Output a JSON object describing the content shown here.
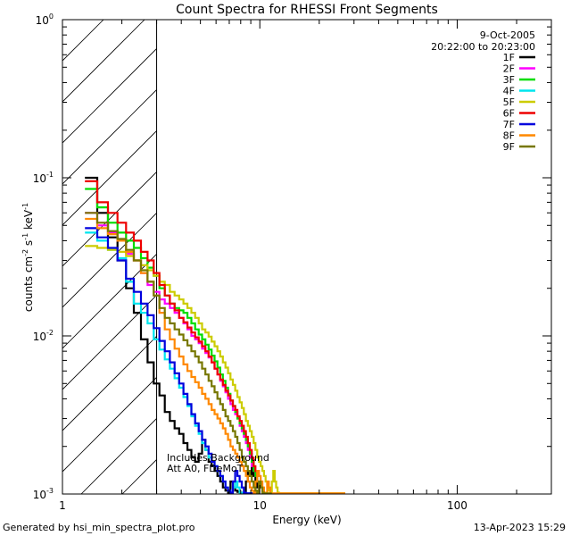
{
  "chart_data": {
    "type": "line",
    "title": "Count Spectra for RHESSI Front Segments",
    "xlabel": "Energy (keV)",
    "ylabel_main": "counts cm",
    "ylabel_e1": "-2",
    "ylabel_mid": " s",
    "ylabel_e2": "-1",
    "ylabel_tail": " keV",
    "ylabel_e3": "-1",
    "x_scale": "log",
    "y_scale": "log",
    "xlim": [
      1,
      300
    ],
    "ylim": [
      0.001,
      1
    ],
    "x_ticks": [
      {
        "value": 1,
        "label": "1"
      },
      {
        "value": 10,
        "label": "10"
      },
      {
        "value": 100,
        "label": "100"
      }
    ],
    "y_ticks": [
      {
        "value": 0.001,
        "base": "10",
        "exp": "-3"
      },
      {
        "value": 0.01,
        "base": "10",
        "exp": "-2"
      },
      {
        "value": 0.1,
        "base": "10",
        "exp": "-1"
      },
      {
        "value": 1,
        "base": "10",
        "exp": "0"
      }
    ],
    "date": "9-Oct-2005",
    "time_range": "20:22:00 to 20:23:00",
    "annotation_line1": "Includes Background",
    "annotation_line2": "Att A0, FDeMoT",
    "hatched_region_end": 3,
    "bin_edges": [
      1.3,
      1.5,
      1.7,
      1.9,
      2.1,
      2.3,
      2.5,
      2.7,
      2.9,
      3.1,
      3.3,
      3.5,
      3.7,
      3.9,
      4.1,
      4.3,
      4.5,
      4.7,
      4.9,
      5.1,
      5.3,
      5.5,
      5.7,
      5.9,
      6.1,
      6.3,
      6.5,
      6.7,
      6.9,
      7.1,
      7.3,
      7.5,
      7.7,
      7.9,
      8.1,
      8.3,
      8.5,
      8.7,
      8.9,
      9.1,
      9.3,
      9.5,
      9.7,
      9.9,
      10.1,
      10.3,
      10.5,
      10.7,
      10.9,
      11.1,
      11.3,
      11.5,
      11.7,
      11.9,
      12.1,
      12.3,
      12.5,
      12.7,
      12.9,
      13.1,
      13.3,
      13.5,
      13.7,
      13.9,
      14.1,
      14.3,
      14.5,
      14.7,
      14.9,
      15.1,
      15.3,
      15.5,
      15.7,
      15.9,
      16.1,
      16.3,
      16.5,
      16.7,
      16.9,
      17.1,
      17.3,
      17.5,
      17.7,
      17.9,
      18.1,
      18.3,
      18.5,
      18.7,
      18.9,
      19.1,
      19.3,
      19.5,
      19.7,
      19.9,
      20.1,
      20.3,
      20.5,
      20.7,
      20.9,
      21.1,
      21.3,
      21.5,
      21.7,
      21.9,
      22.1,
      22.3,
      22.5,
      22.7,
      22.9,
      23.1,
      23.3,
      23.5,
      23.7,
      23.9,
      24.1,
      24.3,
      24.5,
      24.7,
      24.9,
      25.1,
      25.3,
      25.5,
      25.7,
      25.9,
      26.1,
      26.3,
      26.5,
      26.7,
      26.9,
      27.1
    ],
    "series": [
      {
        "name": "1F",
        "color": "#000000",
        "values": [
          0.1,
          0.06,
          0.042,
          0.03,
          0.02,
          0.014,
          0.0095,
          0.0068,
          0.005,
          0.0042,
          0.0033,
          0.0029,
          0.0026,
          0.0024,
          0.0021,
          0.0019,
          0.0017,
          0.0016,
          0.0018,
          0.0022,
          0.0019,
          0.0016,
          0.0015,
          0.0014,
          0.0013,
          0.0012,
          0.0011,
          0.00105,
          0.00102,
          0.0012,
          0.0011,
          0.00105,
          0.00103,
          0.00102,
          0.00101,
          0.00101,
          0.0012,
          0.0014,
          0.0013,
          0.0015,
          0.0013,
          0.0012,
          0.0011
        ]
      },
      {
        "name": "2F",
        "color": "#ff00ff",
        "values": [
          0.06,
          0.05,
          0.045,
          0.04,
          0.033,
          0.03,
          0.025,
          0.021,
          0.019,
          0.017,
          0.016,
          0.015,
          0.014,
          0.013,
          0.012,
          0.011,
          0.01,
          0.0095,
          0.009,
          0.0083,
          0.0078,
          0.0073,
          0.0068,
          0.0062,
          0.0057,
          0.0052,
          0.0048,
          0.0044,
          0.004,
          0.0037,
          0.0034,
          0.0032,
          0.003,
          0.0027,
          0.0025,
          0.0023,
          0.0021,
          0.0019,
          0.0017,
          0.0015,
          0.0014,
          0.0013,
          0.0012
        ]
      },
      {
        "name": "3F",
        "color": "#00dd00",
        "values": [
          0.085,
          0.065,
          0.052,
          0.045,
          0.04,
          0.036,
          0.031,
          0.027,
          0.024,
          0.02,
          0.018,
          0.016,
          0.015,
          0.0145,
          0.014,
          0.013,
          0.012,
          0.011,
          0.0102,
          0.0095,
          0.0088,
          0.0082,
          0.0075,
          0.0069,
          0.0063,
          0.0057,
          0.0052,
          0.0047,
          0.0043,
          0.0039,
          0.0036,
          0.0033,
          0.003,
          0.0028,
          0.0026,
          0.0024,
          0.0022,
          0.002,
          0.0018,
          0.0016,
          0.0014,
          0.0013,
          0.0012
        ]
      },
      {
        "name": "4F",
        "color": "#00e5ee",
        "values": [
          0.045,
          0.04,
          0.035,
          0.031,
          0.022,
          0.016,
          0.014,
          0.012,
          0.0095,
          0.0082,
          0.0071,
          0.0062,
          0.0054,
          0.0047,
          0.0041,
          0.0036,
          0.0031,
          0.0027,
          0.0024,
          0.0021,
          0.0019,
          0.0017,
          0.0016,
          0.0015,
          0.0014,
          0.0013,
          0.0012,
          0.0011,
          0.00105,
          0.00102,
          0.0011,
          0.0012,
          0.0011,
          0.00102,
          0.00101,
          0.00101,
          0.00101,
          0.00101,
          0.00101,
          0.00101,
          0.00101,
          0.00101,
          0.00101
        ]
      },
      {
        "name": "5F",
        "color": "#cccc00",
        "values": [
          0.037,
          0.036,
          0.035,
          0.034,
          0.032,
          0.03,
          0.028,
          0.026,
          0.024,
          0.022,
          0.021,
          0.019,
          0.018,
          0.017,
          0.016,
          0.015,
          0.014,
          0.013,
          0.012,
          0.011,
          0.0105,
          0.0099,
          0.0092,
          0.0086,
          0.008,
          0.0074,
          0.0068,
          0.0063,
          0.0058,
          0.0053,
          0.0049,
          0.0045,
          0.0041,
          0.0038,
          0.0035,
          0.0032,
          0.0029,
          0.0027,
          0.0025,
          0.0023,
          0.0021,
          0.0019,
          0.0017,
          0.0016,
          0.0015,
          0.0014,
          0.0013,
          0.0012,
          0.0011,
          0.00105,
          0.00102,
          0.0012,
          0.0014,
          0.0012,
          0.0011,
          0.00102,
          0.00101,
          0.00101,
          0.00101,
          0.00101,
          0.00101,
          0.00101,
          0.00101,
          0.00101,
          0.00101,
          0.00101,
          0.00101,
          0.00101,
          0.00101,
          0.00101,
          0.00101,
          0.00101,
          0.00101,
          0.00101,
          0.00101,
          0.00101,
          0.00101,
          0.00101,
          0.00101,
          0.00101,
          0.00101,
          0.00101,
          0.00101,
          0.00101,
          0.00101,
          0.00101,
          0.00101,
          0.00101,
          0.00101,
          0.00101,
          0.00101,
          0.00101,
          0.00101,
          0.00101,
          0.00101,
          0.00101,
          0.00101,
          0.00101,
          0.00101,
          0.00101,
          0.00101,
          0.00101,
          0.00101,
          0.00101,
          0.00101,
          0.00101,
          0.00101,
          0.00101,
          0.00101,
          0.00101,
          0.00101,
          0.00101,
          0.00101,
          0.00101,
          0.00101,
          0.00101,
          0.00101,
          0.00101,
          0.00101,
          0.00101,
          0.00101,
          0.00101,
          0.00101,
          0.00101,
          0.00101,
          0.00101,
          0.00101,
          0.00101,
          0.00101
        ]
      },
      {
        "name": "6F",
        "color": "#ee0000",
        "values": [
          0.095,
          0.07,
          0.06,
          0.052,
          0.045,
          0.04,
          0.034,
          0.03,
          0.025,
          0.021,
          0.018,
          0.016,
          0.0145,
          0.013,
          0.0122,
          0.0113,
          0.0105,
          0.0098,
          0.0092,
          0.0086,
          0.008,
          0.0074,
          0.0068,
          0.0062,
          0.0057,
          0.0053,
          0.0049,
          0.0045,
          0.0042,
          0.0039,
          0.0036,
          0.0034,
          0.0031,
          0.0029,
          0.0027,
          0.0025,
          0.0023,
          0.0021,
          0.0019,
          0.0017,
          0.0015,
          0.0014,
          0.0013
        ]
      },
      {
        "name": "7F",
        "color": "#0000dd",
        "values": [
          0.048,
          0.042,
          0.036,
          0.03,
          0.023,
          0.019,
          0.016,
          0.0135,
          0.0112,
          0.0093,
          0.008,
          0.0068,
          0.0058,
          0.005,
          0.0043,
          0.0037,
          0.0032,
          0.0028,
          0.0025,
          0.0022,
          0.002,
          0.0018,
          0.0016,
          0.0015,
          0.0014,
          0.0013,
          0.0012,
          0.0011,
          0.00105,
          0.00102,
          0.0012,
          0.0014,
          0.0013,
          0.0012,
          0.0011,
          0.00102,
          0.00101,
          0.00101,
          0.00101,
          0.00101,
          0.00101,
          0.00101,
          0.00101
        ]
      },
      {
        "name": "8F",
        "color": "#ff8800",
        "values": [
          0.055,
          0.048,
          0.044,
          0.04,
          0.034,
          0.03,
          0.025,
          0.022,
          0.018,
          0.014,
          0.011,
          0.0095,
          0.0083,
          0.0074,
          0.0066,
          0.006,
          0.0055,
          0.0051,
          0.0047,
          0.0043,
          0.004,
          0.0037,
          0.0034,
          0.0032,
          0.003,
          0.0028,
          0.0026,
          0.0024,
          0.0022,
          0.002,
          0.0019,
          0.0018,
          0.0017,
          0.0016,
          0.0015,
          0.0014,
          0.0013,
          0.0012,
          0.0011,
          0.00105,
          0.00102,
          0.0012,
          0.0014,
          0.0013,
          0.0012,
          0.0011,
          0.00102,
          0.00101,
          0.0012,
          0.0011,
          0.00101,
          0.00101,
          0.00101,
          0.00101,
          0.00101,
          0.00101,
          0.00101,
          0.00101,
          0.00101,
          0.00101,
          0.00101,
          0.00101,
          0.00101,
          0.00101,
          0.00101,
          0.00101,
          0.00101,
          0.00101,
          0.00101,
          0.00101,
          0.00101,
          0.00101,
          0.00101,
          0.00101,
          0.00101,
          0.00101,
          0.00101,
          0.00101,
          0.00101,
          0.00101,
          0.00101,
          0.00101,
          0.00101,
          0.00101,
          0.00101,
          0.00101,
          0.00101,
          0.00101,
          0.00101,
          0.00101,
          0.00101,
          0.00101,
          0.00101,
          0.00101,
          0.00101,
          0.00101,
          0.00101,
          0.00101,
          0.00101,
          0.00101,
          0.00101,
          0.00101,
          0.00101,
          0.00101,
          0.00101,
          0.00101,
          0.00101,
          0.00101,
          0.00101,
          0.00101,
          0.00101,
          0.00101,
          0.00101,
          0.00101,
          0.00101,
          0.00101,
          0.00101,
          0.00101,
          0.00101,
          0.00101,
          0.00101,
          0.00101,
          0.00101,
          0.00101,
          0.00101,
          0.00101,
          0.00101,
          0.00101,
          0.00101
        ]
      },
      {
        "name": "9F",
        "color": "#777700",
        "values": [
          0.06,
          0.052,
          0.046,
          0.041,
          0.035,
          0.03,
          0.026,
          0.022,
          0.018,
          0.015,
          0.013,
          0.012,
          0.011,
          0.0102,
          0.0094,
          0.0087,
          0.008,
          0.0074,
          0.0068,
          0.0062,
          0.0057,
          0.0052,
          0.0048,
          0.0044,
          0.004,
          0.0037,
          0.0034,
          0.0031,
          0.0029,
          0.0027,
          0.0025,
          0.0023,
          0.0021,
          0.0019,
          0.0017,
          0.0016,
          0.0015,
          0.0014,
          0.0013,
          0.0012,
          0.0011,
          0.00105,
          0.00102,
          0.0012,
          0.0011,
          0.00102,
          0.00101,
          0.00101,
          0.00101,
          0.00101,
          0.00101
        ]
      }
    ]
  },
  "footer": {
    "generated_by": "Generated by hsi_min_spectra_plot.pro",
    "timestamp": "13-Apr-2023 15:29"
  }
}
